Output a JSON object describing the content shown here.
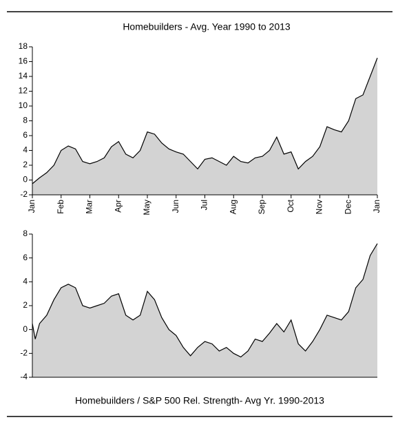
{
  "chart_data": [
    {
      "type": "area",
      "title": "Homebuilders - Avg. Year 1990 to 2013",
      "color": "#d3d3d3",
      "x": [
        0,
        0.25,
        0.5,
        0.75,
        1,
        1.25,
        1.5,
        1.75,
        2,
        2.25,
        2.5,
        2.75,
        3,
        3.25,
        3.5,
        3.75,
        4,
        4.25,
        4.5,
        4.75,
        5,
        5.25,
        5.5,
        5.75,
        6,
        6.25,
        6.5,
        6.75,
        7,
        7.25,
        7.5,
        7.75,
        8,
        8.25,
        8.5,
        8.75,
        9,
        9.25,
        9.5,
        9.75,
        10,
        10.25,
        10.5,
        10.75,
        11,
        11.25,
        11.5,
        11.75,
        12
      ],
      "values": [
        -0.5,
        0.3,
        1,
        2,
        4,
        4.6,
        4.2,
        2.5,
        2.2,
        2.5,
        3,
        4.5,
        5.2,
        3.5,
        3,
        4,
        6.5,
        6.2,
        5,
        4.2,
        3.8,
        3.5,
        2.5,
        1.5,
        2.8,
        3,
        2.5,
        2,
        3.2,
        2.5,
        2.3,
        3,
        3.2,
        4,
        5.8,
        3.5,
        3.8,
        1.5,
        2.5,
        3.2,
        4.5,
        7.2,
        6.8,
        6.5,
        8,
        11,
        11.5,
        14,
        16.5
      ],
      "xlim": [
        0,
        12
      ],
      "xticks": [
        {
          "value": 0,
          "label": "Jan"
        },
        {
          "value": 1,
          "label": "Feb"
        },
        {
          "value": 2,
          "label": "Mar"
        },
        {
          "value": 3,
          "label": "Apr"
        },
        {
          "value": 4,
          "label": "May"
        },
        {
          "value": 5,
          "label": "Jun"
        },
        {
          "value": 6,
          "label": "Jul"
        },
        {
          "value": 7,
          "label": "Aug"
        },
        {
          "value": 8,
          "label": "Sep"
        },
        {
          "value": 9,
          "label": "Oct"
        },
        {
          "value": 10,
          "label": "Nov"
        },
        {
          "value": 11,
          "label": "Dec"
        },
        {
          "value": 12,
          "label": "Jan"
        }
      ],
      "ylim": [
        -2,
        18
      ],
      "yticks": [
        -2,
        0,
        2,
        4,
        6,
        8,
        10,
        12,
        14,
        16,
        18
      ]
    },
    {
      "type": "area",
      "title": "Homebuilders / S&P 500 Rel. Strength- Avg Yr. 1990-2013",
      "color": "#d3d3d3",
      "x": [
        0,
        0.1,
        0.25,
        0.5,
        0.75,
        1,
        1.25,
        1.5,
        1.75,
        2,
        2.25,
        2.5,
        2.75,
        3,
        3.25,
        3.5,
        3.75,
        4,
        4.25,
        4.5,
        4.75,
        5,
        5.25,
        5.5,
        5.75,
        6,
        6.25,
        6.5,
        6.75,
        7,
        7.25,
        7.5,
        7.75,
        8,
        8.25,
        8.5,
        8.75,
        9,
        9.25,
        9.5,
        9.75,
        10,
        10.25,
        10.5,
        10.75,
        11,
        11.25,
        11.5,
        11.75,
        12
      ],
      "values": [
        0.5,
        -0.8,
        0.5,
        1.2,
        2.5,
        3.5,
        3.8,
        3.5,
        2,
        1.8,
        2,
        2.2,
        2.8,
        3,
        1.2,
        0.8,
        1.2,
        3.2,
        2.5,
        1,
        0,
        -0.5,
        -1.5,
        -2.2,
        -1.5,
        -1,
        -1.2,
        -1.8,
        -1.5,
        -2,
        -2.3,
        -1.8,
        -0.8,
        -1,
        -0.3,
        0.5,
        -0.2,
        0.8,
        -1.2,
        -1.8,
        -1,
        0,
        1.2,
        1,
        0.8,
        1.5,
        3.5,
        4.2,
        6.2,
        7.2
      ],
      "xlim": [
        0,
        12
      ],
      "ylim": [
        -4,
        8
      ],
      "yticks": [
        -4,
        -2,
        0,
        2,
        4,
        6,
        8
      ]
    }
  ]
}
